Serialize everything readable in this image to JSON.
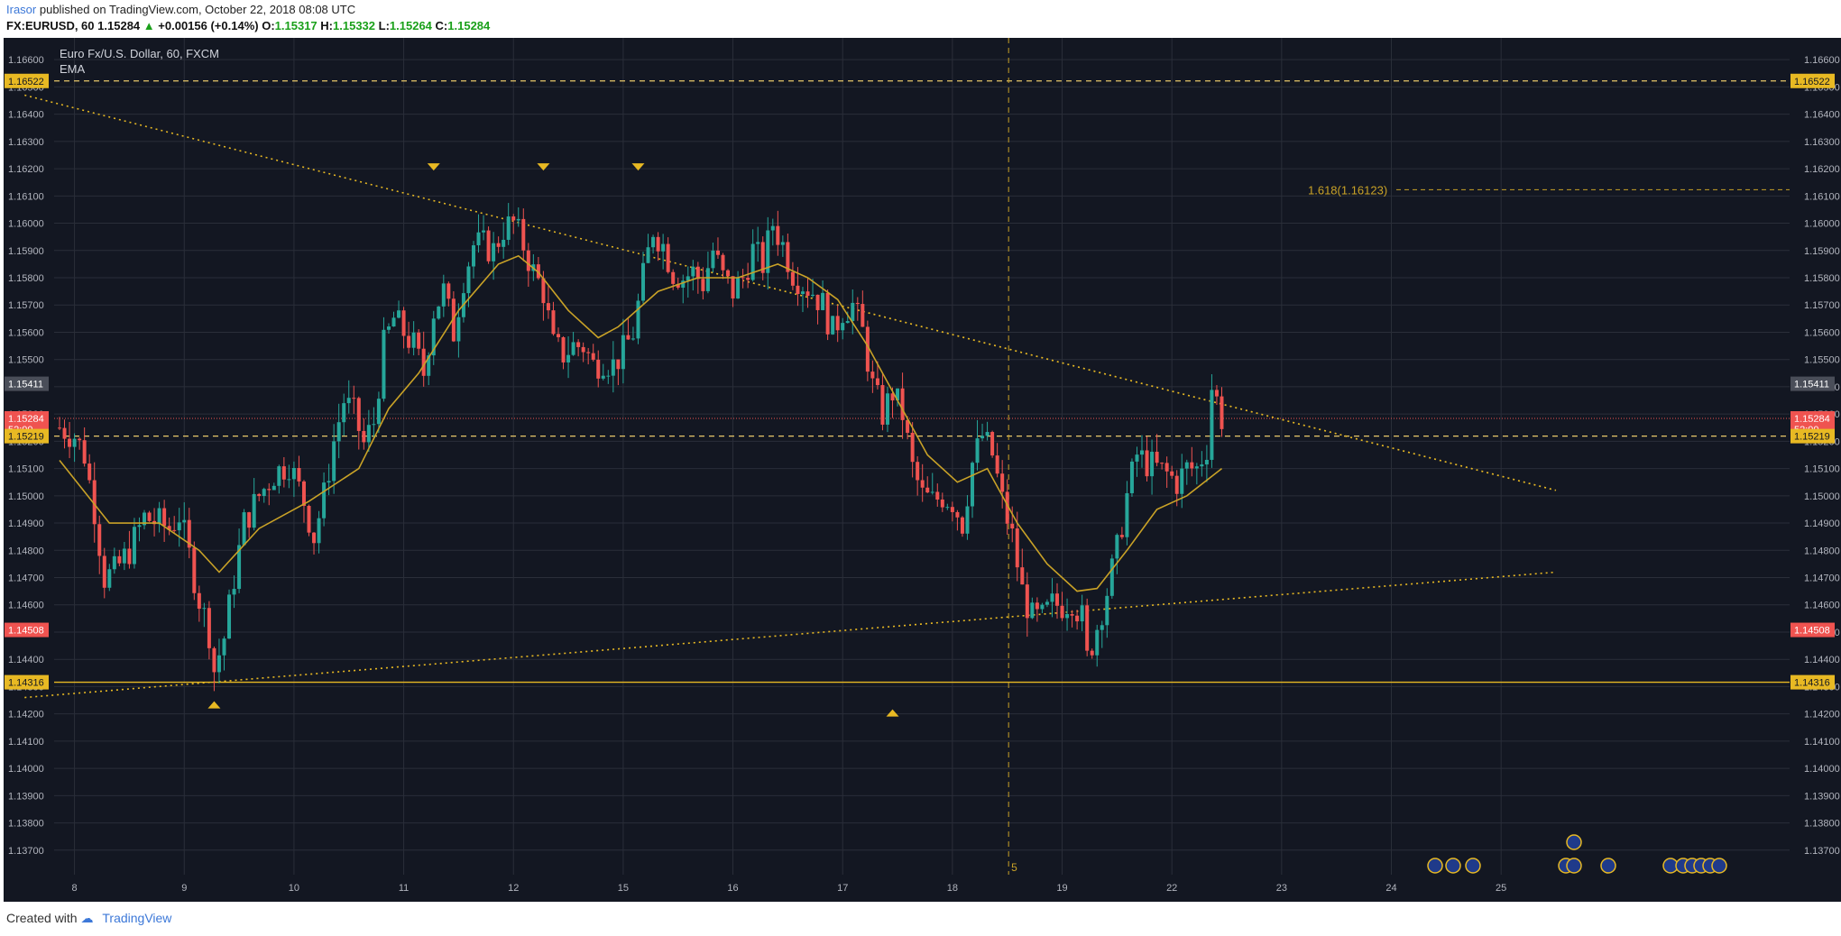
{
  "header": {
    "author": "Irasor",
    "published_text": "published on TradingView.com, October 22, 2018 08:08 UTC"
  },
  "quote": {
    "symbol": "FX:EURUSD, 60",
    "price": "1.15284",
    "change": "+0.00156 (+0.14%)",
    "o_label": "O:",
    "o": "1.15317",
    "h_label": "H:",
    "h": "1.15332",
    "l_label": "L:",
    "l": "1.15264",
    "c_label": "C:",
    "c": "1.15284"
  },
  "legend": {
    "title": "Euro Fx/U.S. Dollar, 60, FXCM",
    "indicator": "EMA"
  },
  "fib_label": "1.618(1.16123)",
  "vertical_marker_label": "5",
  "footer": {
    "created_with": "Created with",
    "brand": "TradingView"
  },
  "colors": {
    "background": "#131722",
    "up": "#26a69a",
    "down": "#ef5350",
    "ema": "#c9a227",
    "trend": "#e8b923",
    "grid": "#2a2e39"
  },
  "chart_data": {
    "type": "candlestick",
    "symbol": "EURUSD",
    "timeframe": "60",
    "ylim": [
      1.1361,
      1.1668
    ],
    "yticks": [
      "1.16600",
      "1.16500",
      "1.16400",
      "1.16300",
      "1.16200",
      "1.16100",
      "1.16000",
      "1.15900",
      "1.15800",
      "1.15700",
      "1.15600",
      "1.15500",
      "1.15400",
      "1.15300",
      "1.15200",
      "1.15100",
      "1.15000",
      "1.14900",
      "1.14800",
      "1.14700",
      "1.14600",
      "1.14500",
      "1.14400",
      "1.14300",
      "1.14200",
      "1.14100",
      "1.14000",
      "1.13900",
      "1.13800",
      "1.13700"
    ],
    "xticks": [
      "8",
      "9",
      "10",
      "11",
      "12",
      "15",
      "16",
      "17",
      "18",
      "19",
      "22",
      "23",
      "24",
      "25"
    ],
    "price_labels": [
      {
        "text": "1.16522",
        "value": 1.16522,
        "style": "dashed"
      },
      {
        "text": "1.15411",
        "value": 1.15411,
        "style": "gray"
      },
      {
        "text": "1.15284",
        "value": 1.15284,
        "style": "current"
      },
      {
        "text": "52:00",
        "value": 1.15245,
        "style": "current"
      },
      {
        "text": "1.15219",
        "value": 1.15219,
        "style": "dashed"
      },
      {
        "text": "1.14508",
        "value": 1.14508,
        "style": "red"
      },
      {
        "text": "1.14316",
        "value": 1.14316,
        "style": "solid"
      }
    ],
    "anchors": [
      [
        0,
        1.1525
      ],
      [
        3,
        1.1522
      ],
      [
        5,
        1.1515
      ],
      [
        7,
        1.1495
      ],
      [
        9,
        1.147
      ],
      [
        11,
        1.1472
      ],
      [
        14,
        1.148
      ],
      [
        17,
        1.1492
      ],
      [
        20,
        1.149
      ],
      [
        22,
        1.1488
      ],
      [
        24,
        1.1493
      ],
      [
        26,
        1.1478
      ],
      [
        28,
        1.1462
      ],
      [
        30,
        1.145
      ],
      [
        31,
        1.1436
      ],
      [
        33,
        1.1448
      ],
      [
        35,
        1.147
      ],
      [
        37,
        1.149
      ],
      [
        40,
        1.15
      ],
      [
        43,
        1.1508
      ],
      [
        46,
        1.1512
      ],
      [
        49,
        1.1498
      ],
      [
        51,
        1.1485
      ],
      [
        53,
        1.15
      ],
      [
        55,
        1.152
      ],
      [
        57,
        1.1535
      ],
      [
        59,
        1.153
      ],
      [
        61,
        1.1519
      ],
      [
        63,
        1.1527
      ],
      [
        65,
        1.1555
      ],
      [
        67,
        1.1565
      ],
      [
        69,
        1.156
      ],
      [
        71,
        1.1555
      ],
      [
        73,
        1.1545
      ],
      [
        75,
        1.1568
      ],
      [
        77,
        1.1575
      ],
      [
        79,
        1.156
      ],
      [
        81,
        1.158
      ],
      [
        83,
        1.1592
      ],
      [
        85,
        1.1592
      ],
      [
        87,
        1.159
      ],
      [
        89,
        1.1598
      ],
      [
        91,
        1.16
      ],
      [
        93,
        1.1592
      ],
      [
        95,
        1.1582
      ],
      [
        97,
        1.1575
      ],
      [
        99,
        1.1555
      ],
      [
        101,
        1.1552
      ],
      [
        103,
        1.1555
      ],
      [
        105,
        1.1555
      ],
      [
        107,
        1.1548
      ],
      [
        109,
        1.155
      ],
      [
        111,
        1.1548
      ],
      [
        113,
        1.1553
      ],
      [
        115,
        1.156
      ],
      [
        117,
        1.158
      ],
      [
        119,
        1.1598
      ],
      [
        121,
        1.1592
      ],
      [
        123,
        1.1582
      ],
      [
        125,
        1.158
      ],
      [
        127,
        1.1582
      ],
      [
        129,
        1.1578
      ],
      [
        131,
        1.159
      ],
      [
        133,
        1.158
      ],
      [
        135,
        1.1575
      ],
      [
        137,
        1.158
      ],
      [
        139,
        1.159
      ],
      [
        141,
        1.1585
      ],
      [
        143,
        1.16
      ],
      [
        145,
        1.1592
      ],
      [
        147,
        1.1582
      ],
      [
        149,
        1.1578
      ],
      [
        151,
        1.1575
      ],
      [
        153,
        1.157
      ],
      [
        155,
        1.156
      ],
      [
        157,
        1.1568
      ],
      [
        159,
        1.157
      ],
      [
        161,
        1.156
      ],
      [
        163,
        1.154
      ],
      [
        165,
        1.153
      ],
      [
        167,
        1.1538
      ],
      [
        169,
        1.153
      ],
      [
        171,
        1.151
      ],
      [
        173,
        1.15
      ],
      [
        175,
        1.1498
      ],
      [
        177,
        1.15
      ],
      [
        179,
        1.1498
      ],
      [
        181,
        1.149
      ],
      [
        183,
        1.1512
      ],
      [
        185,
        1.1522
      ],
      [
        187,
        1.1515
      ],
      [
        189,
        1.1498
      ],
      [
        191,
        1.1485
      ],
      [
        193,
        1.1465
      ],
      [
        195,
        1.1455
      ],
      [
        197,
        1.1455
      ],
      [
        199,
        1.146
      ],
      [
        201,
        1.146
      ],
      [
        203,
        1.1462
      ],
      [
        205,
        1.1455
      ],
      [
        206,
        1.144
      ],
      [
        208,
        1.1452
      ],
      [
        210,
        1.1465
      ],
      [
        212,
        1.148
      ],
      [
        214,
        1.15
      ],
      [
        216,
        1.1515
      ],
      [
        218,
        1.1512
      ],
      [
        220,
        1.151
      ],
      [
        222,
        1.1508
      ],
      [
        224,
        1.1505
      ],
      [
        226,
        1.151
      ],
      [
        228,
        1.151
      ],
      [
        230,
        1.1518
      ],
      [
        231,
        1.154
      ],
      [
        232,
        1.1535
      ],
      [
        233,
        1.15284
      ]
    ],
    "ema": [
      [
        0,
        1.1513
      ],
      [
        10,
        1.149
      ],
      [
        20,
        1.149
      ],
      [
        28,
        1.148
      ],
      [
        32,
        1.1472
      ],
      [
        40,
        1.1488
      ],
      [
        50,
        1.1498
      ],
      [
        60,
        1.151
      ],
      [
        66,
        1.1532
      ],
      [
        72,
        1.1545
      ],
      [
        80,
        1.1568
      ],
      [
        88,
        1.1585
      ],
      [
        92,
        1.1588
      ],
      [
        96,
        1.1582
      ],
      [
        102,
        1.1568
      ],
      [
        108,
        1.1558
      ],
      [
        112,
        1.1562
      ],
      [
        120,
        1.1575
      ],
      [
        128,
        1.158
      ],
      [
        136,
        1.158
      ],
      [
        144,
        1.1585
      ],
      [
        150,
        1.158
      ],
      [
        156,
        1.1572
      ],
      [
        162,
        1.1555
      ],
      [
        168,
        1.1535
      ],
      [
        174,
        1.1515
      ],
      [
        180,
        1.1505
      ],
      [
        186,
        1.151
      ],
      [
        192,
        1.149
      ],
      [
        198,
        1.1475
      ],
      [
        204,
        1.1465
      ],
      [
        208,
        1.1466
      ],
      [
        214,
        1.148
      ],
      [
        220,
        1.1495
      ],
      [
        226,
        1.15
      ],
      [
        233,
        1.151
      ]
    ],
    "trendlines": [
      {
        "from": [
          -7,
          1.1647
        ],
        "to": [
          300,
          1.1502
        ],
        "style": "dotted"
      },
      {
        "from": [
          -7,
          1.1426
        ],
        "to": [
          300,
          1.1472
        ],
        "style": "dotted"
      }
    ],
    "horizontal_lines": [
      {
        "value": 1.16522,
        "style": "dashed"
      },
      {
        "value": 1.15219,
        "style": "dashed"
      },
      {
        "value": 1.14316,
        "style": "solid"
      },
      {
        "value": 1.16123,
        "style": "dashed",
        "label": "fib"
      }
    ],
    "vertical_line_bar": 189,
    "markers_down": [
      [
        75,
        1.162
      ],
      [
        97,
        1.162
      ],
      [
        116,
        1.162
      ]
    ],
    "markers_up": [
      [
        31,
        1.1424
      ],
      [
        167,
        1.1421
      ]
    ],
    "x_label_bars": [
      3,
      25,
      47,
      69,
      91,
      113,
      135,
      157,
      179,
      201,
      223,
      245,
      267,
      289
    ],
    "bar_count": 234
  }
}
